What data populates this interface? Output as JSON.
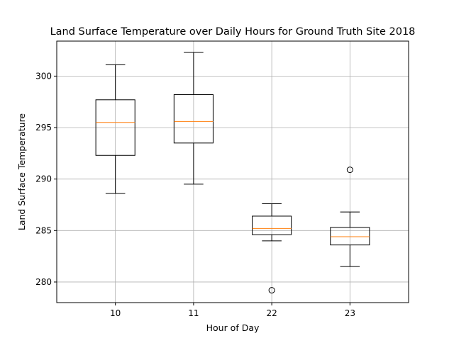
{
  "chart_data": {
    "type": "boxplot",
    "title": "Land Surface Temperature over Daily Hours for Ground Truth Site 2018",
    "xlabel": "Hour of Day",
    "ylabel": "Land Surface Temperature",
    "categories": [
      "10",
      "11",
      "22",
      "23"
    ],
    "ylim": [
      278,
      303.4
    ],
    "yticks": [
      280,
      285,
      290,
      295,
      300
    ],
    "grid": true,
    "boxes": [
      {
        "category": "10",
        "whisker_low": 288.6,
        "q1": 292.3,
        "median": 295.5,
        "q3": 297.7,
        "whisker_high": 301.1,
        "outliers": []
      },
      {
        "category": "11",
        "whisker_low": 289.5,
        "q1": 293.5,
        "median": 295.6,
        "q3": 298.2,
        "whisker_high": 302.3,
        "outliers": []
      },
      {
        "category": "22",
        "whisker_low": 284.0,
        "q1": 284.6,
        "median": 285.2,
        "q3": 286.4,
        "whisker_high": 287.6,
        "outliers": [
          279.2
        ]
      },
      {
        "category": "23",
        "whisker_low": 281.5,
        "q1": 283.6,
        "median": 284.4,
        "q3": 285.3,
        "whisker_high": 286.8,
        "outliers": [
          290.9
        ]
      }
    ],
    "colors": {
      "box": "#000000",
      "median": "#ff7f0e",
      "grid": "#b0b0b0"
    }
  }
}
